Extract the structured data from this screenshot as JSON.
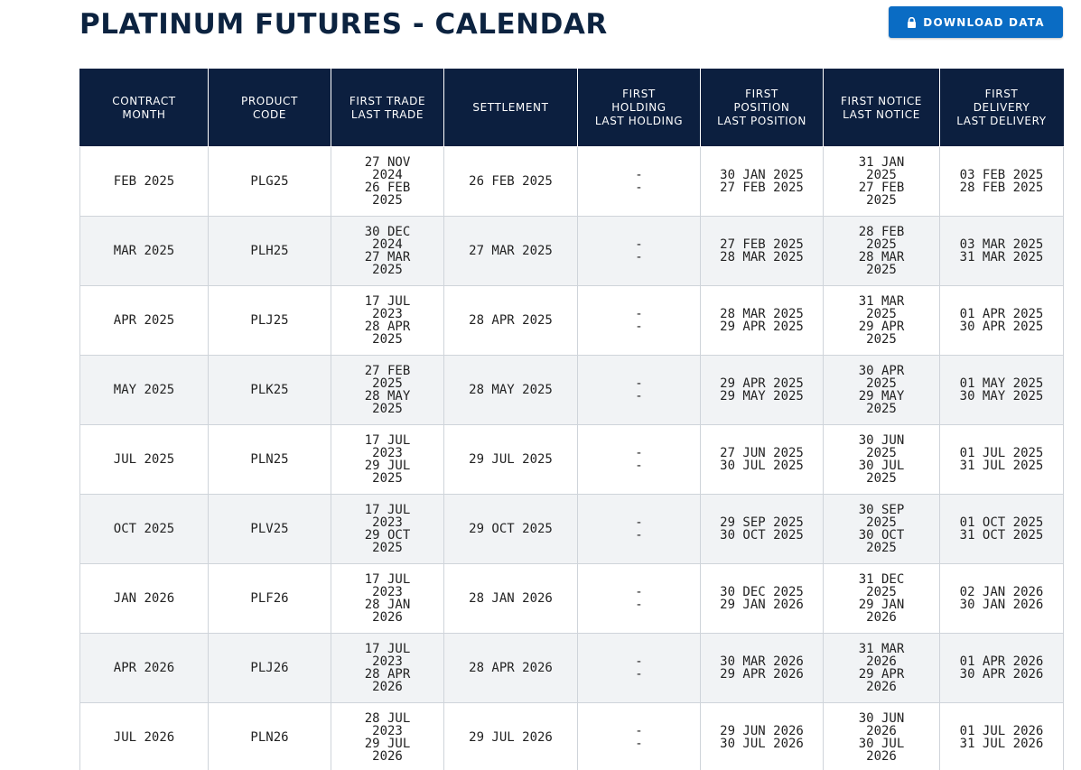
{
  "page": {
    "title": "PLATINUM FUTURES - CALENDAR"
  },
  "toolbar": {
    "download_label": "DOWNLOAD DATA",
    "download_icon": "lock-icon"
  },
  "table": {
    "headers": [
      [
        "CONTRACT",
        "MONTH"
      ],
      [
        "PRODUCT",
        "CODE"
      ],
      [
        "FIRST TRADE",
        "LAST TRADE"
      ],
      [
        "SETTLEMENT"
      ],
      [
        "FIRST",
        "HOLDING",
        "LAST HOLDING"
      ],
      [
        "FIRST",
        "POSITION",
        "LAST POSITION"
      ],
      [
        "FIRST NOTICE",
        "LAST NOTICE"
      ],
      [
        "FIRST",
        "DELIVERY",
        "LAST DELIVERY"
      ]
    ],
    "rows": [
      {
        "month": "FEB 2025",
        "code": "PLG25",
        "first_trade": "27 NOV 2024",
        "last_trade": "26 FEB 2025",
        "settlement": "26 FEB 2025",
        "first_holding": "-",
        "last_holding": "-",
        "first_position": "30 JAN 2025",
        "last_position": "27 FEB 2025",
        "first_notice": "31 JAN 2025",
        "last_notice": "27 FEB 2025",
        "first_delivery": "03 FEB 2025",
        "last_delivery": "28 FEB 2025"
      },
      {
        "month": "MAR 2025",
        "code": "PLH25",
        "first_trade": "30 DEC 2024",
        "last_trade": "27 MAR 2025",
        "settlement": "27 MAR 2025",
        "first_holding": "-",
        "last_holding": "-",
        "first_position": "27 FEB 2025",
        "last_position": "28 MAR 2025",
        "first_notice": "28 FEB 2025",
        "last_notice": "28 MAR 2025",
        "first_delivery": "03 MAR 2025",
        "last_delivery": "31 MAR 2025"
      },
      {
        "month": "APR 2025",
        "code": "PLJ25",
        "first_trade": "17 JUL 2023",
        "last_trade": "28 APR 2025",
        "settlement": "28 APR 2025",
        "first_holding": "-",
        "last_holding": "-",
        "first_position": "28 MAR 2025",
        "last_position": "29 APR 2025",
        "first_notice": "31 MAR 2025",
        "last_notice": "29 APR 2025",
        "first_delivery": "01 APR 2025",
        "last_delivery": "30 APR 2025"
      },
      {
        "month": "MAY 2025",
        "code": "PLK25",
        "first_trade": "27 FEB 2025",
        "last_trade": "28 MAY 2025",
        "settlement": "28 MAY 2025",
        "first_holding": "-",
        "last_holding": "-",
        "first_position": "29 APR 2025",
        "last_position": "29 MAY 2025",
        "first_notice": "30 APR 2025",
        "last_notice": "29 MAY 2025",
        "first_delivery": "01 MAY 2025",
        "last_delivery": "30 MAY 2025"
      },
      {
        "month": "JUL 2025",
        "code": "PLN25",
        "first_trade": "17 JUL 2023",
        "last_trade": "29 JUL 2025",
        "settlement": "29 JUL 2025",
        "first_holding": "-",
        "last_holding": "-",
        "first_position": "27 JUN 2025",
        "last_position": "30 JUL 2025",
        "first_notice": "30 JUN 2025",
        "last_notice": "30 JUL 2025",
        "first_delivery": "01 JUL 2025",
        "last_delivery": "31 JUL 2025"
      },
      {
        "month": "OCT 2025",
        "code": "PLV25",
        "first_trade": "17 JUL 2023",
        "last_trade": "29 OCT 2025",
        "settlement": "29 OCT 2025",
        "first_holding": "-",
        "last_holding": "-",
        "first_position": "29 SEP 2025",
        "last_position": "30 OCT 2025",
        "first_notice": "30 SEP 2025",
        "last_notice": "30 OCT 2025",
        "first_delivery": "01 OCT 2025",
        "last_delivery": "31 OCT 2025"
      },
      {
        "month": "JAN 2026",
        "code": "PLF26",
        "first_trade": "17 JUL 2023",
        "last_trade": "28 JAN 2026",
        "settlement": "28 JAN 2026",
        "first_holding": "-",
        "last_holding": "-",
        "first_position": "30 DEC 2025",
        "last_position": "29 JAN 2026",
        "first_notice": "31 DEC 2025",
        "last_notice": "29 JAN 2026",
        "first_delivery": "02 JAN 2026",
        "last_delivery": "30 JAN 2026"
      },
      {
        "month": "APR 2026",
        "code": "PLJ26",
        "first_trade": "17 JUL 2023",
        "last_trade": "28 APR 2026",
        "settlement": "28 APR 2026",
        "first_holding": "-",
        "last_holding": "-",
        "first_position": "30 MAR 2026",
        "last_position": "29 APR 2026",
        "first_notice": "31 MAR 2026",
        "last_notice": "29 APR 2026",
        "first_delivery": "01 APR 2026",
        "last_delivery": "30 APR 2026"
      },
      {
        "month": "JUL 2026",
        "code": "PLN26",
        "first_trade": "28 JUL 2023",
        "last_trade": "29 JUL 2026",
        "settlement": "29 JUL 2026",
        "first_holding": "-",
        "last_holding": "-",
        "first_position": "29 JUN 2026",
        "last_position": "30 JUL 2026",
        "first_notice": "30 JUN 2026",
        "last_notice": "30 JUL 2026",
        "first_delivery": "01 JUL 2026",
        "last_delivery": "31 JUL 2026"
      }
    ]
  }
}
